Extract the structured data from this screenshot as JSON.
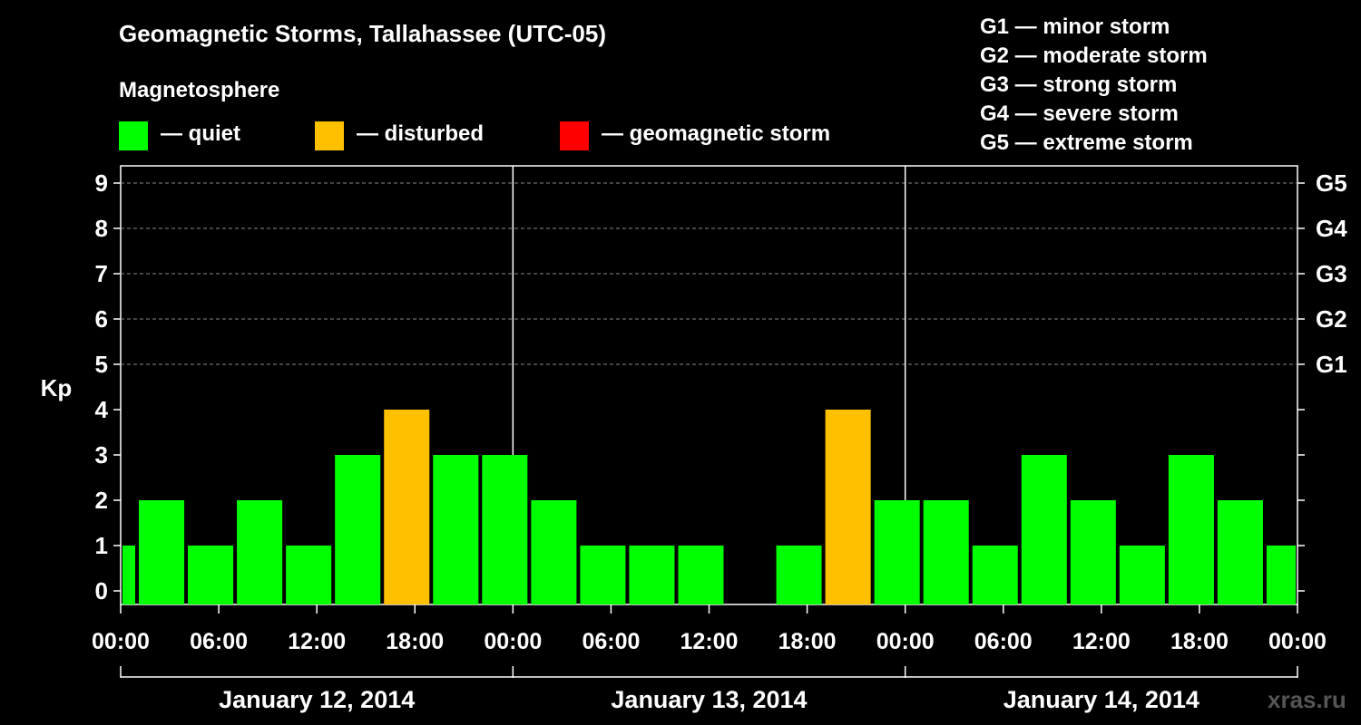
{
  "chart_data": {
    "type": "bar",
    "title": "Geomagnetic Storms, Tallahassee (UTC-05)",
    "subtitle": "Magnetosphere",
    "ylabel": "Kp",
    "ylim": [
      0,
      9
    ],
    "yticks": [
      "0",
      "1",
      "2",
      "3",
      "4",
      "5",
      "6",
      "7",
      "8",
      "9"
    ],
    "right_axis_labels": [
      {
        "kp": 5,
        "label": "G1"
      },
      {
        "kp": 6,
        "label": "G2"
      },
      {
        "kp": 7,
        "label": "G3"
      },
      {
        "kp": 8,
        "label": "G4"
      },
      {
        "kp": 9,
        "label": "G5"
      }
    ],
    "x_tick_labels": [
      "00:00",
      "06:00",
      "12:00",
      "18:00",
      "00:00",
      "06:00",
      "12:00",
      "18:00",
      "00:00",
      "06:00",
      "12:00",
      "18:00",
      "00:00"
    ],
    "x_range_hours": [
      0,
      72
    ],
    "day_labels": [
      "January 12, 2014",
      "January 13, 2014",
      "January 14, 2014"
    ],
    "bars": [
      {
        "start": 0,
        "end": 1,
        "kp": 1,
        "status": "quiet"
      },
      {
        "start": 1,
        "end": 4,
        "kp": 2,
        "status": "quiet"
      },
      {
        "start": 4,
        "end": 7,
        "kp": 1,
        "status": "quiet"
      },
      {
        "start": 7,
        "end": 10,
        "kp": 2,
        "status": "quiet"
      },
      {
        "start": 10,
        "end": 13,
        "kp": 1,
        "status": "quiet"
      },
      {
        "start": 13,
        "end": 16,
        "kp": 3,
        "status": "quiet"
      },
      {
        "start": 16,
        "end": 19,
        "kp": 4,
        "status": "disturbed"
      },
      {
        "start": 19,
        "end": 22,
        "kp": 3,
        "status": "quiet"
      },
      {
        "start": 22,
        "end": 25,
        "kp": 3,
        "status": "quiet"
      },
      {
        "start": 25,
        "end": 28,
        "kp": 2,
        "status": "quiet"
      },
      {
        "start": 28,
        "end": 31,
        "kp": 1,
        "status": "quiet"
      },
      {
        "start": 31,
        "end": 34,
        "kp": 1,
        "status": "quiet"
      },
      {
        "start": 34,
        "end": 37,
        "kp": 1,
        "status": "quiet"
      },
      {
        "start": 37,
        "end": 40,
        "kp": 0,
        "status": "quiet"
      },
      {
        "start": 40,
        "end": 43,
        "kp": 1,
        "status": "quiet"
      },
      {
        "start": 43,
        "end": 46,
        "kp": 4,
        "status": "disturbed"
      },
      {
        "start": 46,
        "end": 49,
        "kp": 2,
        "status": "quiet"
      },
      {
        "start": 49,
        "end": 52,
        "kp": 2,
        "status": "quiet"
      },
      {
        "start": 52,
        "end": 55,
        "kp": 1,
        "status": "quiet"
      },
      {
        "start": 55,
        "end": 58,
        "kp": 3,
        "status": "quiet"
      },
      {
        "start": 58,
        "end": 61,
        "kp": 2,
        "status": "quiet"
      },
      {
        "start": 61,
        "end": 64,
        "kp": 1,
        "status": "quiet"
      },
      {
        "start": 64,
        "end": 67,
        "kp": 3,
        "status": "quiet"
      },
      {
        "start": 67,
        "end": 70,
        "kp": 2,
        "status": "quiet"
      },
      {
        "start": 70,
        "end": 72,
        "kp": 1,
        "status": "quiet"
      }
    ]
  },
  "legend": {
    "quiet": {
      "label": "— quiet",
      "color": "#00ff00"
    },
    "disturbed": {
      "label": "— disturbed",
      "color": "#ffc000"
    },
    "storm": {
      "label": "— geomagnetic storm",
      "color": "#ff0000"
    }
  },
  "storm_levels": [
    "G1 — minor storm",
    "G2 — moderate storm",
    "G3 — strong storm",
    "G4 — severe storm",
    "G5 — extreme storm"
  ],
  "watermark": "xras.ru"
}
